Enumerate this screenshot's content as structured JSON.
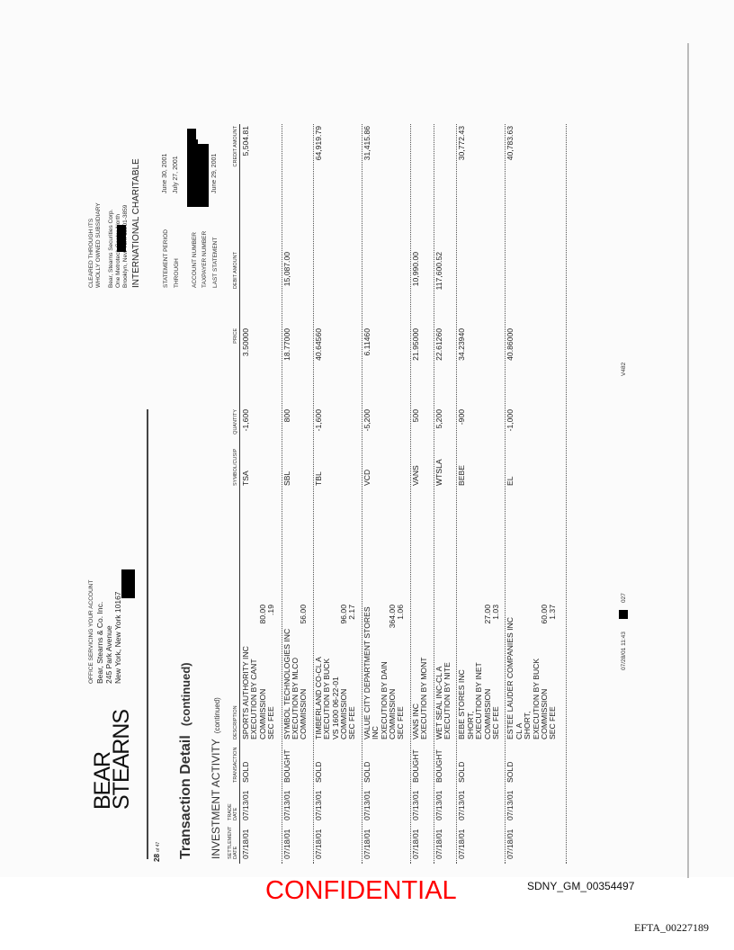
{
  "header": {
    "logo": [
      "BEAR",
      "STEARNS"
    ],
    "page_number": "28",
    "page_of": "of 47",
    "office": [
      "OFFICE SERVICING YOUR ACCOUNT",
      "Bear, Stearns & Co. Inc.",
      "245 Park Avenue",
      "New York, New York 10167"
    ],
    "clearing": [
      "CLEARED THROUGH ITS",
      "WHOLLY OWNED SUBSIDIARY",
      "Bear, Stearns Securities Corp.",
      "One Metrotech Center North",
      "Brooklyn, New York 11201-3859"
    ],
    "account_name": "INTERNATIONAL CHARITABLE",
    "statement_period_label": "STATEMENT PERIOD",
    "statement_period": "June 30, 2001",
    "through_label": "THROUGH",
    "through": "July 27, 2001",
    "account_number_label": "ACCOUNT NUMBER",
    "taxpayer_number_label": "TAXPAYER NUMBER",
    "last_statement_label": "LAST STATEMENT",
    "last_statement": "June 29, 2001"
  },
  "title": "Transaction Detail",
  "title_suffix": "(continued)",
  "section": "INVESTMENT ACTIVITY",
  "section_suffix": "(continued)",
  "columns": {
    "settlement": [
      "SETTLEMENT",
      "DATE"
    ],
    "trade": [
      "TRADE",
      "DATE"
    ],
    "transaction": "TRANSACTION",
    "description": "DESCRIPTION",
    "symbol": "SYMBOL/CUSIP",
    "quantity": "QUANTITY",
    "price": "PRICE",
    "debit": "DEBIT AMOUNT",
    "credit": "CREDIT AMOUNT"
  },
  "rows": [
    {
      "settle": "07/18/01",
      "trade": "07/13/01",
      "txn": "SOLD",
      "desc": [
        {
          "t": "SPORTS AUTHORITY INC"
        },
        {
          "t": "EXECUTION BY CANT"
        },
        {
          "t": "COMMISSION",
          "a": "80.00"
        },
        {
          "t": "SEC FEE",
          "a": ".19"
        }
      ],
      "symbol": "TSA",
      "qty": "-1,600",
      "price": "3.50000",
      "debit": "",
      "credit": "5,504.81"
    },
    {
      "settle": "07/18/01",
      "trade": "07/13/01",
      "txn": "BOUGHT",
      "desc": [
        {
          "t": "SYMBOL TECHNOLOGIES INC"
        },
        {
          "t": "EXECUTION BY MLCO"
        },
        {
          "t": "COMMISSION",
          "a": "56.00"
        }
      ],
      "symbol": "SBL",
      "qty": "800",
      "price": "18.77000",
      "debit": "15,087.00",
      "credit": ""
    },
    {
      "settle": "07/18/01",
      "trade": "07/13/01",
      "txn": "SOLD",
      "desc": [
        {
          "t": "TIMBERLAND CO-CL A"
        },
        {
          "t": "EXECUTION BY BUCK"
        },
        {
          "t": "VS 1600 06-22-01"
        },
        {
          "t": "COMMISSION",
          "a": "96.00"
        },
        {
          "t": "SEC FEE",
          "a": "2.17"
        }
      ],
      "symbol": "TBL",
      "qty": "-1,600",
      "price": "40.64560",
      "debit": "",
      "credit": "64,919.79"
    },
    {
      "settle": "07/18/01",
      "trade": "07/13/01",
      "txn": "SOLD",
      "desc": [
        {
          "t": "VALUE CITY DEPARTMENT STORES"
        },
        {
          "t": "INC"
        },
        {
          "t": "EXECUTION BY DAIN"
        },
        {
          "t": "COMMISSION",
          "a": "364.00"
        },
        {
          "t": "SEC FEE",
          "a": "1.06"
        }
      ],
      "symbol": "VCD",
      "qty": "-5,200",
      "price": "6.11460",
      "debit": "",
      "credit": "31,415.86"
    },
    {
      "settle": "07/18/01",
      "trade": "07/13/01",
      "txn": "BOUGHT",
      "desc": [
        {
          "t": "VANS INC"
        },
        {
          "t": "EXECUTION BY MONT"
        }
      ],
      "symbol": "VANS",
      "qty": "500",
      "price": "21.95000",
      "debit": "10,990.00",
      "credit": ""
    },
    {
      "settle": "07/18/01",
      "trade": "07/13/01",
      "txn": "BOUGHT",
      "desc": [
        {
          "t": "WET SEAL INC-CL A"
        },
        {
          "t": "EXECUTION BY NITE"
        }
      ],
      "symbol": "WTSLA",
      "qty": "5,200",
      "price": "22.61260",
      "debit": "117,600.52",
      "credit": ""
    },
    {
      "settle": "07/18/01",
      "trade": "07/13/01",
      "txn": "SOLD",
      "desc": [
        {
          "t": "BEBE STORES INC"
        },
        {
          "t": "SHORT,"
        },
        {
          "t": "EXECUTION BY INET"
        },
        {
          "t": "COMMISSION",
          "a": "27.00"
        },
        {
          "t": "SEC FEE",
          "a": "1.03"
        }
      ],
      "symbol": "BEBE",
      "qty": "-900",
      "price": "34.23940",
      "debit": "",
      "credit": "30,772.43"
    },
    {
      "settle": "07/18/01",
      "trade": "07/13/01",
      "txn": "SOLD",
      "desc": [
        {
          "t": "ESTEE LAUDER COMPANIES INC"
        },
        {
          "t": "CL A"
        },
        {
          "t": "SHORT,"
        },
        {
          "t": "EXECUTION BY BUCK"
        },
        {
          "t": "COMMISSION",
          "a": "60.00"
        },
        {
          "t": "SEC FEE",
          "a": "1.37"
        }
      ],
      "symbol": "EL",
      "qty": "-1,000",
      "price": "40.86000",
      "debit": "",
      "credit": "40,783.63"
    }
  ],
  "footer": {
    "code": "027",
    "timestamp": "07/28/01 11:43",
    "version": "V482"
  },
  "stamps": {
    "confidential": "CONFIDENTIAL",
    "bates": "SDNY_GM_00354497",
    "efta": "EFTA_00227189"
  },
  "colors": {
    "confidential": "#ff0000"
  }
}
